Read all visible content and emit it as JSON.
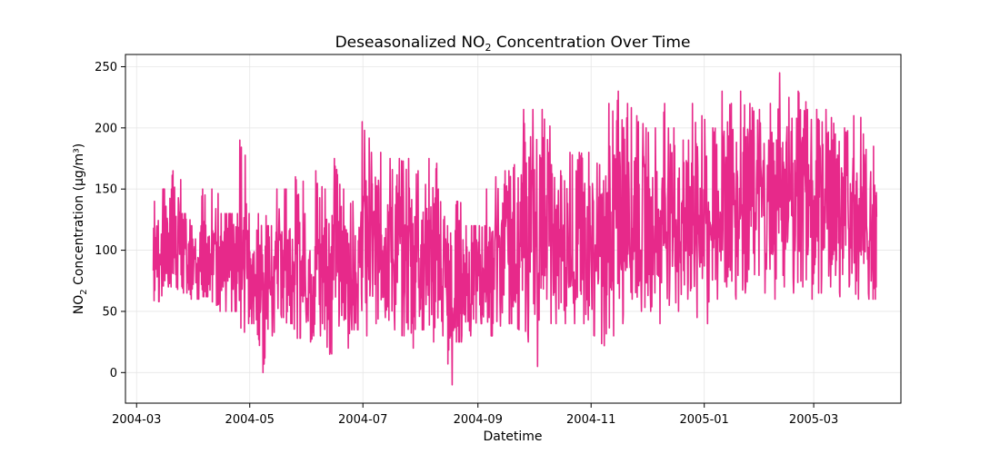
{
  "chart_data": {
    "type": "line",
    "title_main": "Deseasonalized NO",
    "title_sub": "2",
    "title_rest": " Concentration Over Time",
    "xlabel": "Datetime",
    "ylabel_main": "NO",
    "ylabel_sub": "2",
    "ylabel_rest": " Concentration (µg/m³)",
    "xlim": [
      "2004-02-24",
      "2005-04-17"
    ],
    "ylim": [
      -25,
      260
    ],
    "grid": true,
    "color": "#e7298a",
    "x_ticks": [
      {
        "date": "2004-03-01",
        "label": "2004-03"
      },
      {
        "date": "2004-05-01",
        "label": "2004-05"
      },
      {
        "date": "2004-07-01",
        "label": "2004-07"
      },
      {
        "date": "2004-09-01",
        "label": "2004-09"
      },
      {
        "date": "2004-11-01",
        "label": "2004-11"
      },
      {
        "date": "2005-01-01",
        "label": "2005-01"
      },
      {
        "date": "2005-03-01",
        "label": "2005-03"
      }
    ],
    "y_ticks": [
      0,
      50,
      100,
      150,
      200,
      250
    ],
    "series": [
      {
        "x": [
          "2004-03-10",
          "2004-03-15",
          "2004-03-20",
          "2004-03-25",
          "2004-03-30",
          "2004-04-05",
          "2004-04-10",
          "2004-04-15",
          "2004-04-20",
          "2004-04-25",
          "2004-04-30",
          "2004-05-05",
          "2004-05-10",
          "2004-05-15",
          "2004-05-20",
          "2004-05-25",
          "2004-05-30",
          "2004-06-05",
          "2004-06-10",
          "2004-06-15",
          "2004-06-20",
          "2004-06-25",
          "2004-06-30",
          "2004-07-05",
          "2004-07-10",
          "2004-07-15",
          "2004-07-20",
          "2004-07-25",
          "2004-07-30",
          "2004-08-05",
          "2004-08-10",
          "2004-08-15",
          "2004-08-20",
          "2004-08-25",
          "2004-08-30",
          "2004-09-05",
          "2004-09-10",
          "2004-09-15",
          "2004-09-20",
          "2004-09-25",
          "2004-09-30",
          "2004-10-05",
          "2004-10-10",
          "2004-10-15",
          "2004-10-20",
          "2004-10-25",
          "2004-10-30",
          "2004-11-05",
          "2004-11-10",
          "2004-11-15",
          "2004-11-20",
          "2004-11-25",
          "2004-11-30",
          "2004-12-05",
          "2004-12-10",
          "2004-12-15",
          "2004-12-20",
          "2004-12-25",
          "2004-12-30",
          "2005-01-05",
          "2005-01-10",
          "2005-01-15",
          "2005-01-20",
          "2005-01-25",
          "2005-01-30",
          "2005-02-05",
          "2005-02-10",
          "2005-02-15",
          "2005-02-20",
          "2005-02-25",
          "2005-03-02",
          "2005-03-07",
          "2005-03-12",
          "2005-03-17",
          "2005-03-22",
          "2005-03-27",
          "2005-04-02",
          "2005-04-04"
        ],
        "min": [
          58,
          70,
          68,
          65,
          60,
          62,
          55,
          50,
          50,
          33,
          40,
          0,
          30,
          45,
          40,
          28,
          25,
          30,
          15,
          38,
          20,
          35,
          30,
          40,
          45,
          35,
          30,
          20,
          35,
          25,
          30,
          -10,
          25,
          30,
          40,
          30,
          38,
          40,
          35,
          25,
          5,
          60,
          40,
          40,
          40,
          40,
          30,
          22,
          30,
          40,
          60,
          50,
          50,
          40,
          55,
          50,
          60,
          45,
          40,
          60,
          70,
          60,
          65,
          80,
          65,
          60,
          70,
          65,
          70,
          60,
          65,
          70,
          62,
          70,
          60,
          60,
          60,
          70
        ],
        "max": [
          140,
          150,
          165,
          130,
          120,
          150,
          150,
          130,
          130,
          190,
          130,
          130,
          120,
          150,
          150,
          160,
          130,
          165,
          150,
          175,
          150,
          140,
          205,
          180,
          180,
          175,
          175,
          175,
          165,
          175,
          150,
          120,
          140,
          120,
          120,
          150,
          160,
          165,
          170,
          215,
          215,
          215,
          170,
          165,
          180,
          180,
          180,
          170,
          220,
          230,
          220,
          210,
          200,
          200,
          220,
          200,
          190,
          220,
          210,
          200,
          230,
          220,
          230,
          220,
          215,
          220,
          245,
          225,
          230,
          215,
          215,
          215,
          195,
          200,
          210,
          195,
          185,
          175
        ]
      }
    ]
  }
}
